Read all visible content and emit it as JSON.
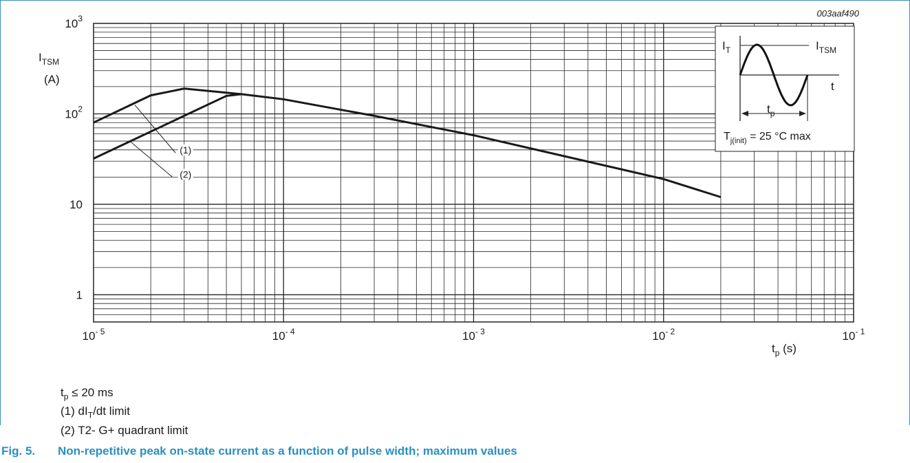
{
  "figure_code": "003aaf490",
  "caption_number": "Fig. 5.",
  "caption_text": "Non-repetitive peak on-state current as a function of pulse width; maximum values",
  "notes": {
    "tp_condition": {
      "main": "t",
      "sub": "p",
      "rest": " ≤ 20 ms"
    },
    "curve1": {
      "pre": "(1) dI",
      "sub": "T",
      "post": "/dt limit"
    },
    "curve2": "(2) T2- G+ quadrant limit"
  },
  "inset": {
    "it_label": {
      "main": "I",
      "sub": "T"
    },
    "itsm_label": {
      "main": "I",
      "sub": "TSM"
    },
    "t_label": "t",
    "tp_label": {
      "main": "t",
      "sub": "p"
    },
    "tj_label": {
      "main": "T",
      "sub": "j(init)",
      "rest": " = 25 °C max"
    }
  },
  "colors": {
    "axis": "#222222",
    "grid": "#222222",
    "curve": "#1a1a1a",
    "caption": "#2a8fc0",
    "frame": "#3a8fb7"
  },
  "chart_data": {
    "type": "line",
    "title": "",
    "xscale": "log",
    "yscale": "log",
    "xlim": [
      1e-05,
      0.1
    ],
    "ylim": [
      0.5,
      1000
    ],
    "ylabel": {
      "main": "I",
      "sub": "TSM",
      "unit": "(A)"
    },
    "xlabel": {
      "main": "t",
      "sub": "p",
      "unit": " (s)"
    },
    "x_ticks": [
      {
        "value": 1e-05,
        "base": "10",
        "exp": "- 5"
      },
      {
        "value": 0.0001,
        "base": "10",
        "exp": "- 4"
      },
      {
        "value": 0.001,
        "base": "10",
        "exp": "- 3"
      },
      {
        "value": 0.01,
        "base": "10",
        "exp": "- 2"
      },
      {
        "value": 0.1,
        "base": "10",
        "exp": "- 1"
      }
    ],
    "y_ticks": [
      {
        "value": 1,
        "base": "1",
        "exp": ""
      },
      {
        "value": 10,
        "base": "10",
        "exp": ""
      },
      {
        "value": 100,
        "base": "10",
        "exp": "2"
      },
      {
        "value": 1000,
        "base": "10",
        "exp": "3"
      }
    ],
    "grid": true,
    "series": [
      {
        "name": "(1)",
        "x": [
          1e-05,
          2e-05,
          3e-05,
          6e-05,
          0.0001,
          0.0003,
          0.001,
          0.01,
          0.02
        ],
        "y": [
          80,
          160,
          190,
          165,
          145,
          95,
          58,
          19,
          12
        ]
      },
      {
        "name": "(2)",
        "x": [
          1e-05,
          5e-05,
          6e-05
        ],
        "y": [
          32,
          158,
          165
        ]
      }
    ],
    "annotations": [
      {
        "text": "(1)",
        "series": 0
      },
      {
        "text": "(2)",
        "series": 1
      }
    ]
  }
}
